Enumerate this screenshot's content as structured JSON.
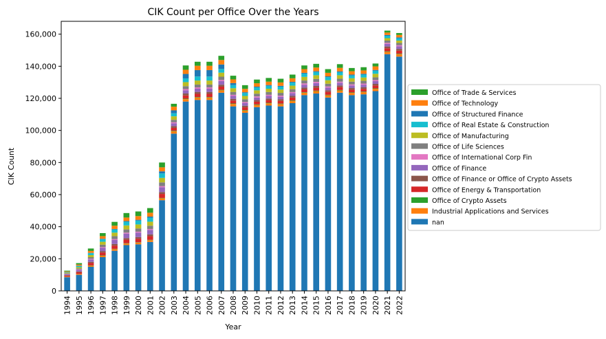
{
  "chart_data": {
    "type": "bar",
    "stacked": true,
    "title": "CIK Count per Office Over the Years",
    "xlabel": "Year",
    "ylabel": "CIK Count",
    "ylim": [
      0,
      168000
    ],
    "yticks": [
      0,
      20000,
      40000,
      60000,
      80000,
      100000,
      120000,
      140000,
      160000
    ],
    "ytick_labels": [
      "0",
      "20,000",
      "40,000",
      "60,000",
      "80,000",
      "100,000",
      "120,000",
      "140,000",
      "160,000"
    ],
    "grid": false,
    "legend_position": "center-right",
    "categories": [
      "1994",
      "1995",
      "1996",
      "1997",
      "1998",
      "1999",
      "2000",
      "2001",
      "2002",
      "2003",
      "2004",
      "2005",
      "2006",
      "2007",
      "2008",
      "2009",
      "2010",
      "2011",
      "2012",
      "2013",
      "2014",
      "2015",
      "2016",
      "2017",
      "2018",
      "2019",
      "2020",
      "2021",
      "2022"
    ],
    "series": [
      {
        "name": "nan",
        "color": "#1f77b4",
        "values": [
          8500,
          10000,
          15000,
          21000,
          25000,
          28500,
          29000,
          30500,
          56500,
          98000,
          118000,
          119000,
          119000,
          123500,
          115000,
          111000,
          114500,
          115500,
          115000,
          117000,
          122000,
          123000,
          120500,
          123500,
          122000,
          122500,
          124500,
          147500,
          146000
        ]
      },
      {
        "name": "Industrial Applications and Services",
        "color": "#ff7f0e",
        "values": [
          300,
          500,
          700,
          900,
          1000,
          1000,
          1100,
          1100,
          1200,
          1500,
          1500,
          1500,
          1500,
          1500,
          1500,
          1400,
          1400,
          1400,
          1400,
          1400,
          1500,
          1500,
          1400,
          1400,
          1400,
          1400,
          1400,
          1500,
          1500
        ]
      },
      {
        "name": "Office of Crypto Assets",
        "color": "#2ca02c",
        "values": [
          100,
          100,
          200,
          200,
          200,
          200,
          200,
          200,
          200,
          300,
          300,
          300,
          300,
          300,
          300,
          300,
          300,
          300,
          300,
          300,
          300,
          300,
          300,
          300,
          300,
          300,
          300,
          300,
          300
        ]
      },
      {
        "name": "Office of Energy & Transportation",
        "color": "#d62728",
        "values": [
          600,
          1000,
          1500,
          1800,
          2000,
          2200,
          2200,
          2300,
          2500,
          1800,
          2000,
          2000,
          2000,
          2000,
          1800,
          1700,
          1700,
          1700,
          1700,
          1800,
          1800,
          1800,
          1800,
          1800,
          1700,
          1700,
          1800,
          1900,
          1900
        ]
      },
      {
        "name": "Office of Finance or Office of Crypto Assets",
        "color": "#8c564b",
        "values": [
          300,
          500,
          700,
          900,
          1000,
          1000,
          1000,
          1100,
          1200,
          1100,
          1200,
          1200,
          1200,
          1200,
          1100,
          1000,
          1000,
          1000,
          1000,
          1000,
          1100,
          1100,
          1000,
          1000,
          1000,
          1000,
          1000,
          1100,
          1100
        ]
      },
      {
        "name": "Office of Finance",
        "color": "#9467bd",
        "values": [
          600,
          1000,
          1500,
          2000,
          2500,
          2800,
          2800,
          2800,
          3000,
          1700,
          2000,
          2000,
          2000,
          2200,
          1800,
          1600,
          1600,
          1600,
          1600,
          1700,
          1800,
          1800,
          1700,
          1700,
          1600,
          1600,
          1700,
          1600,
          1600
        ]
      },
      {
        "name": "Office of International Corp Fin",
        "color": "#e377c2",
        "values": [
          200,
          300,
          400,
          500,
          600,
          600,
          600,
          600,
          700,
          700,
          800,
          800,
          800,
          800,
          700,
          700,
          700,
          700,
          700,
          700,
          800,
          800,
          700,
          700,
          700,
          700,
          700,
          700,
          700
        ]
      },
      {
        "name": "Office of Life Sciences",
        "color": "#7f7f7f",
        "values": [
          300,
          600,
          1000,
          1500,
          1800,
          2000,
          2000,
          2000,
          2300,
          1500,
          1800,
          1800,
          1800,
          2000,
          1800,
          1700,
          1700,
          1700,
          1700,
          1800,
          1800,
          1800,
          1700,
          1800,
          1700,
          1700,
          1700,
          1400,
          1400
        ]
      },
      {
        "name": "Office of Manufacturing",
        "color": "#bcbd22",
        "values": [
          400,
          800,
          1300,
          1800,
          2200,
          2500,
          2500,
          2500,
          2800,
          2200,
          2500,
          2500,
          2500,
          2500,
          2300,
          2100,
          2100,
          2100,
          2100,
          2200,
          2300,
          2300,
          2200,
          2200,
          2100,
          2100,
          2200,
          1500,
          1500
        ]
      },
      {
        "name": "Office of Real Estate & Construction",
        "color": "#17becf",
        "values": [
          300,
          700,
          1200,
          1600,
          2000,
          2300,
          2400,
          2500,
          2800,
          1900,
          2300,
          2500,
          2500,
          2300,
          2000,
          1800,
          1800,
          1800,
          1800,
          1900,
          2000,
          2000,
          1900,
          1900,
          1800,
          1800,
          1900,
          1500,
          1500
        ]
      },
      {
        "name": "Office of Structured Finance",
        "color": "#1f77b4",
        "values": [
          100,
          200,
          200,
          300,
          300,
          400,
          500,
          700,
          1300,
          1800,
          2800,
          4000,
          4000,
          2800,
          1200,
          500,
          500,
          500,
          500,
          500,
          500,
          500,
          500,
          500,
          500,
          500,
          500,
          500,
          500
        ]
      },
      {
        "name": "Office of Technology",
        "color": "#ff7f0e",
        "values": [
          400,
          700,
          1200,
          1600,
          2000,
          2200,
          2300,
          2400,
          2500,
          2300,
          2600,
          2700,
          2700,
          2800,
          2300,
          2100,
          2100,
          2100,
          2100,
          2200,
          2300,
          2300,
          2200,
          2200,
          2100,
          2100,
          2200,
          1500,
          1500
        ]
      },
      {
        "name": "Office of Trade & Services",
        "color": "#2ca02c",
        "values": [
          500,
          900,
          1500,
          1900,
          2400,
          2800,
          2900,
          2900,
          3000,
          1800,
          2700,
          2500,
          2500,
          2600,
          2300,
          2300,
          2300,
          2300,
          2300,
          2300,
          2300,
          2300,
          2300,
          2300,
          2000,
          2000,
          1800,
          1200,
          1200
        ]
      }
    ]
  }
}
